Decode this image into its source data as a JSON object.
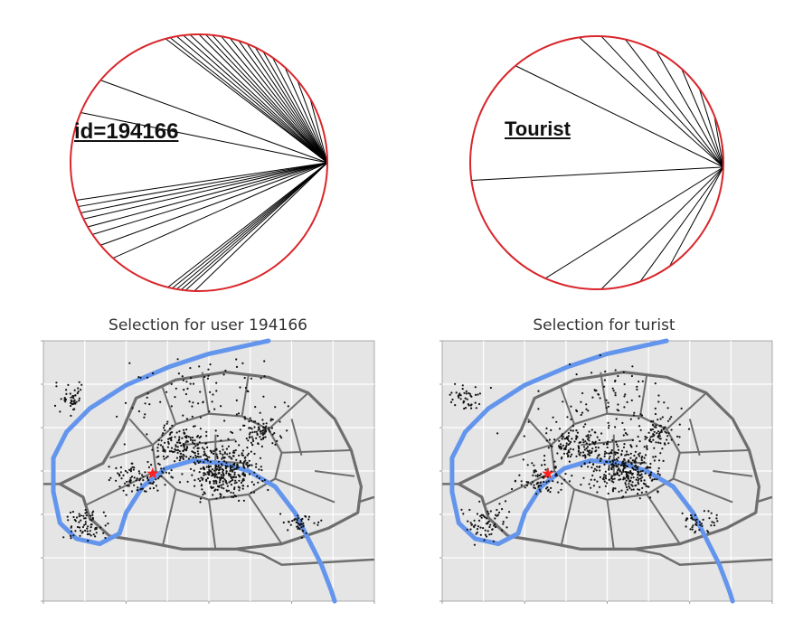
{
  "colors": {
    "circle_edge": "#d9262b",
    "chord": "#000000",
    "map_bg": "#e5e5e5",
    "grid": "#ffffff",
    "river": "#6495ed",
    "roads": "#6e6e6e",
    "points": "#111111",
    "marker": "#ff2020"
  },
  "panels": {
    "user_circle": {
      "label": "id=194166",
      "chord_count": 34
    },
    "tourist_circle": {
      "label": "Tourist",
      "chord_count": 14
    },
    "user_map": {
      "title": "Selection for user 194166",
      "marker": "red-star"
    },
    "tourist_map": {
      "title": "Selection for turist",
      "marker": "red-star"
    }
  }
}
